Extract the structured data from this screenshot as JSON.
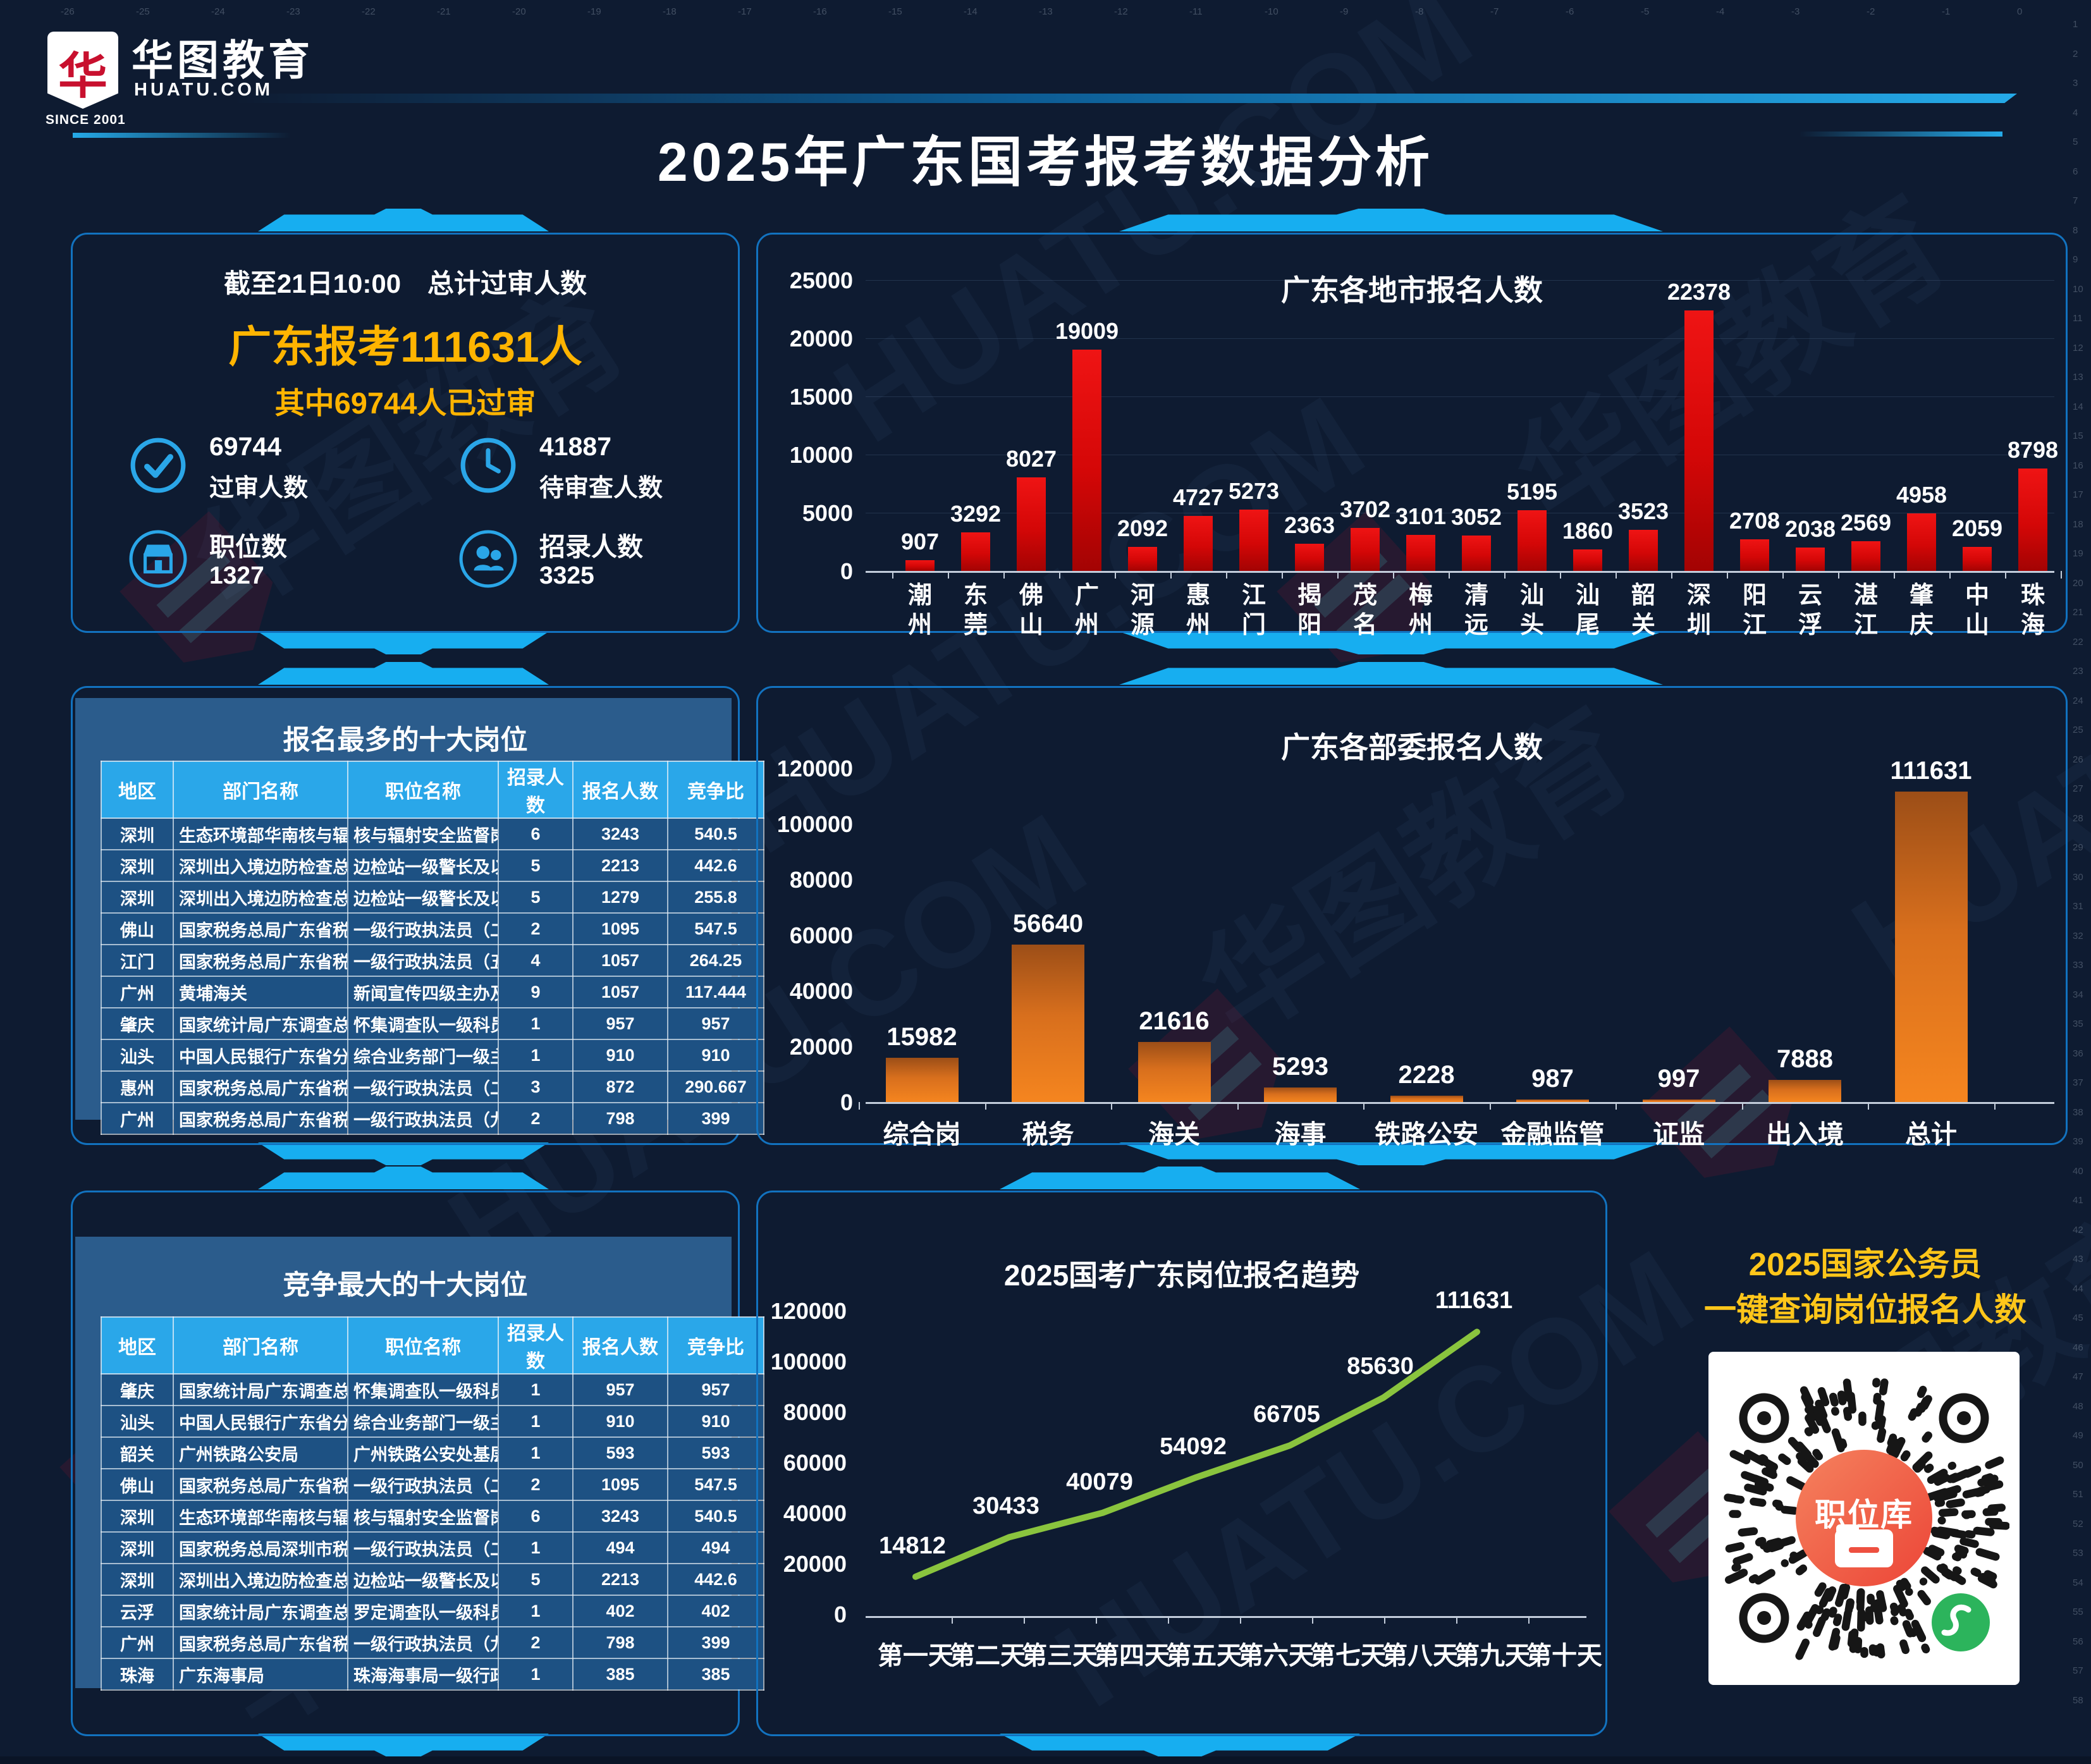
{
  "ruler": {
    "top_from": -26,
    "top_to": 0,
    "right_from": 1,
    "right_to": 58
  },
  "header": {
    "logo": {
      "brand_cn": "华图教育",
      "brand_domain": "HUATU.COM",
      "since": "SINCE 2001",
      "mark": "华"
    },
    "title": "2025年广东国考报考数据分析"
  },
  "stats": {
    "subtitle": "截至21日10:00　总计过审人数",
    "headline": "广东报考111631人",
    "subheadline": "其中69744人已过审",
    "items": [
      {
        "icon": "check-circle",
        "line1": "69744",
        "line2": "过审人数"
      },
      {
        "icon": "clock",
        "line1": "41887",
        "line2": "待审查人数"
      },
      {
        "icon": "storefront",
        "line1": "职位数",
        "line2": "1327"
      },
      {
        "icon": "people",
        "line1": "招录人数",
        "line2": "3325"
      }
    ]
  },
  "tables": [
    {
      "title": "报名最多的十大岗位",
      "columns": [
        "地区",
        "部门名称",
        "职位名称",
        "招录人数",
        "报名人数",
        "竞争比"
      ],
      "rows": [
        [
          "深圳",
          "生态环境部华南核与辐射安全监督站",
          "核与辐射安全监督岗位一级主任科员",
          "6",
          "3243",
          "540.5"
        ],
        [
          "深圳",
          "深圳出入境边防检查总站",
          "边检站一级警长及以下",
          "5",
          "2213",
          "442.6"
        ],
        [
          "深圳",
          "深圳出入境边防检查总站",
          "边检站一级警长及以下",
          "5",
          "1279",
          "255.8"
        ],
        [
          "佛山",
          "国家税务总局广东省税务局",
          "一级行政执法员（二）",
          "2",
          "1095",
          "547.5"
        ],
        [
          "江门",
          "国家税务总局广东省税务局",
          "一级行政执法员（五）",
          "4",
          "1057",
          "264.25"
        ],
        [
          "广州",
          "黄埔海关",
          "新闻宣传四级主办及以下",
          "9",
          "1057",
          "117.444"
        ],
        [
          "肇庆",
          "国家统计局广东调查总队",
          "怀集调查队一级科员（二）",
          "1",
          "957",
          "957"
        ],
        [
          "汕头",
          "中国人民银行广东省分行",
          "综合业务部门一级主任科员",
          "1",
          "910",
          "910"
        ],
        [
          "惠州",
          "国家税务总局广东省税务局",
          "一级行政执法员（二）",
          "3",
          "872",
          "290.667"
        ],
        [
          "广州",
          "国家税务总局广东省税务局",
          "一级行政执法员（九）",
          "2",
          "798",
          "399"
        ]
      ]
    },
    {
      "title": "竞争最大的十大岗位",
      "columns": [
        "地区",
        "部门名称",
        "职位名称",
        "招录人数",
        "报名人数",
        "竞争比"
      ],
      "rows": [
        [
          "肇庆",
          "国家统计局广东调查总队",
          "怀集调查队一级科员（二）",
          "1",
          "957",
          "957"
        ],
        [
          "汕头",
          "中国人民银行广东省分行",
          "综合业务部门一级主任科员",
          "1",
          "910",
          "910"
        ],
        [
          "韶关",
          "广州铁路公安局",
          "广州铁路公安处基层所队",
          "1",
          "593",
          "593"
        ],
        [
          "佛山",
          "国家税务总局广东省税务局",
          "一级行政执法员（二）",
          "2",
          "1095",
          "547.5"
        ],
        [
          "深圳",
          "生态环境部华南核与辐射安全监督站",
          "核与辐射安全监督岗位一级主任科员",
          "6",
          "3243",
          "540.5"
        ],
        [
          "深圳",
          "国家税务总局深圳市税务局",
          "一级行政执法员（二）",
          "1",
          "494",
          "494"
        ],
        [
          "深圳",
          "深圳出入境边防检查总站",
          "边检站一级警长及以下",
          "5",
          "2213",
          "442.6"
        ],
        [
          "云浮",
          "国家统计局广东调查总队",
          "罗定调查队一级科员",
          "1",
          "402",
          "402"
        ],
        [
          "广州",
          "国家税务总局广东省税务局",
          "一级行政执法员（九）",
          "2",
          "798",
          "399"
        ],
        [
          "珠海",
          "广东海事局",
          "珠海海事局一级行政执法员",
          "1",
          "385",
          "385"
        ]
      ]
    }
  ],
  "chart_data": [
    {
      "type": "bar",
      "title": "广东各地市报名人数",
      "categories": [
        "潮州",
        "东莞",
        "佛山",
        "广州",
        "河源",
        "惠州",
        "江门",
        "揭阳",
        "茂名",
        "梅州",
        "清远",
        "汕头",
        "汕尾",
        "韶关",
        "深圳",
        "阳江",
        "云浮",
        "湛江",
        "肇庆",
        "中山",
        "珠海"
      ],
      "values": [
        907,
        3292,
        8027,
        19009,
        2092,
        4727,
        5273,
        2363,
        3702,
        3101,
        3052,
        5195,
        1860,
        3523,
        22378,
        2708,
        2038,
        2569,
        4958,
        2059,
        8798
      ],
      "xlabel": "",
      "ylabel": "",
      "ylim": [
        0,
        25000
      ],
      "ytick_step": 5000,
      "grid": true,
      "legend_position": "none",
      "bar_color": "#d40707"
    },
    {
      "type": "bar",
      "title": "广东各部委报名人数",
      "categories": [
        "综合岗",
        "税务",
        "海关",
        "海事",
        "铁路公安",
        "金融监管",
        "证监",
        "出入境",
        "总计"
      ],
      "values": [
        15982,
        56640,
        21616,
        5293,
        2228,
        987,
        997,
        7888,
        111631
      ],
      "xlabel": "",
      "ylabel": "",
      "ylim": [
        0,
        120000
      ],
      "ytick_step": 20000,
      "grid": false,
      "legend_position": "none",
      "bar_color": "#f5851f"
    },
    {
      "type": "line",
      "title": "2025国考广东岗位报名趋势",
      "categories": [
        "第一天",
        "第二天",
        "第三天",
        "第四天",
        "第五天",
        "第六天",
        "第七天",
        "第八天",
        "第九天",
        "第十天"
      ],
      "values": [
        14812,
        30433,
        40079,
        54092,
        66705,
        85630,
        111631
      ],
      "xlabel": "",
      "ylabel": "",
      "ylim": [
        0,
        120000
      ],
      "ytick_step": 20000,
      "grid": false,
      "legend_position": "none",
      "line_color": "#8ac43e"
    }
  ],
  "qr": {
    "line1": "2025国家公务员",
    "line2": "一键查询岗位报名人数",
    "badge": "职位库"
  }
}
